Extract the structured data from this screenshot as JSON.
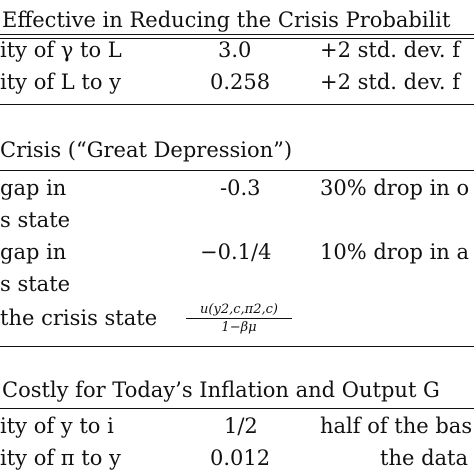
{
  "sections": [
    {
      "title": "Effective in Reducing the Crisis Probabilit",
      "rows": [
        {
          "param": "ity of γ to L",
          "value": "3.0",
          "note": "+2 std. dev. f"
        },
        {
          "param": "ity of L to y",
          "value": "0.258",
          "note": "+2 std. dev. f"
        }
      ]
    },
    {
      "title": "Crisis (“Great Depression”)",
      "rows": [
        {
          "param": "gap in",
          "param2": "s state",
          "value": "-0.3",
          "note": "30% drop in o"
        },
        {
          "param": "gap in",
          "param2": "s state",
          "value": "−0.1/4",
          "note": "10% drop in a"
        },
        {
          "param": "the crisis state",
          "value_num": "u(y2,c,π2,c)",
          "value_den": "1−βμ",
          "note": ""
        }
      ]
    },
    {
      "title": "Costly for Today’s Inflation and Output G",
      "rows": [
        {
          "param": "ity of y to i",
          "value": "1/2",
          "note": "half of the bas"
        },
        {
          "param": "ity of π to y",
          "value": "0.012",
          "note": "the data"
        }
      ]
    }
  ]
}
